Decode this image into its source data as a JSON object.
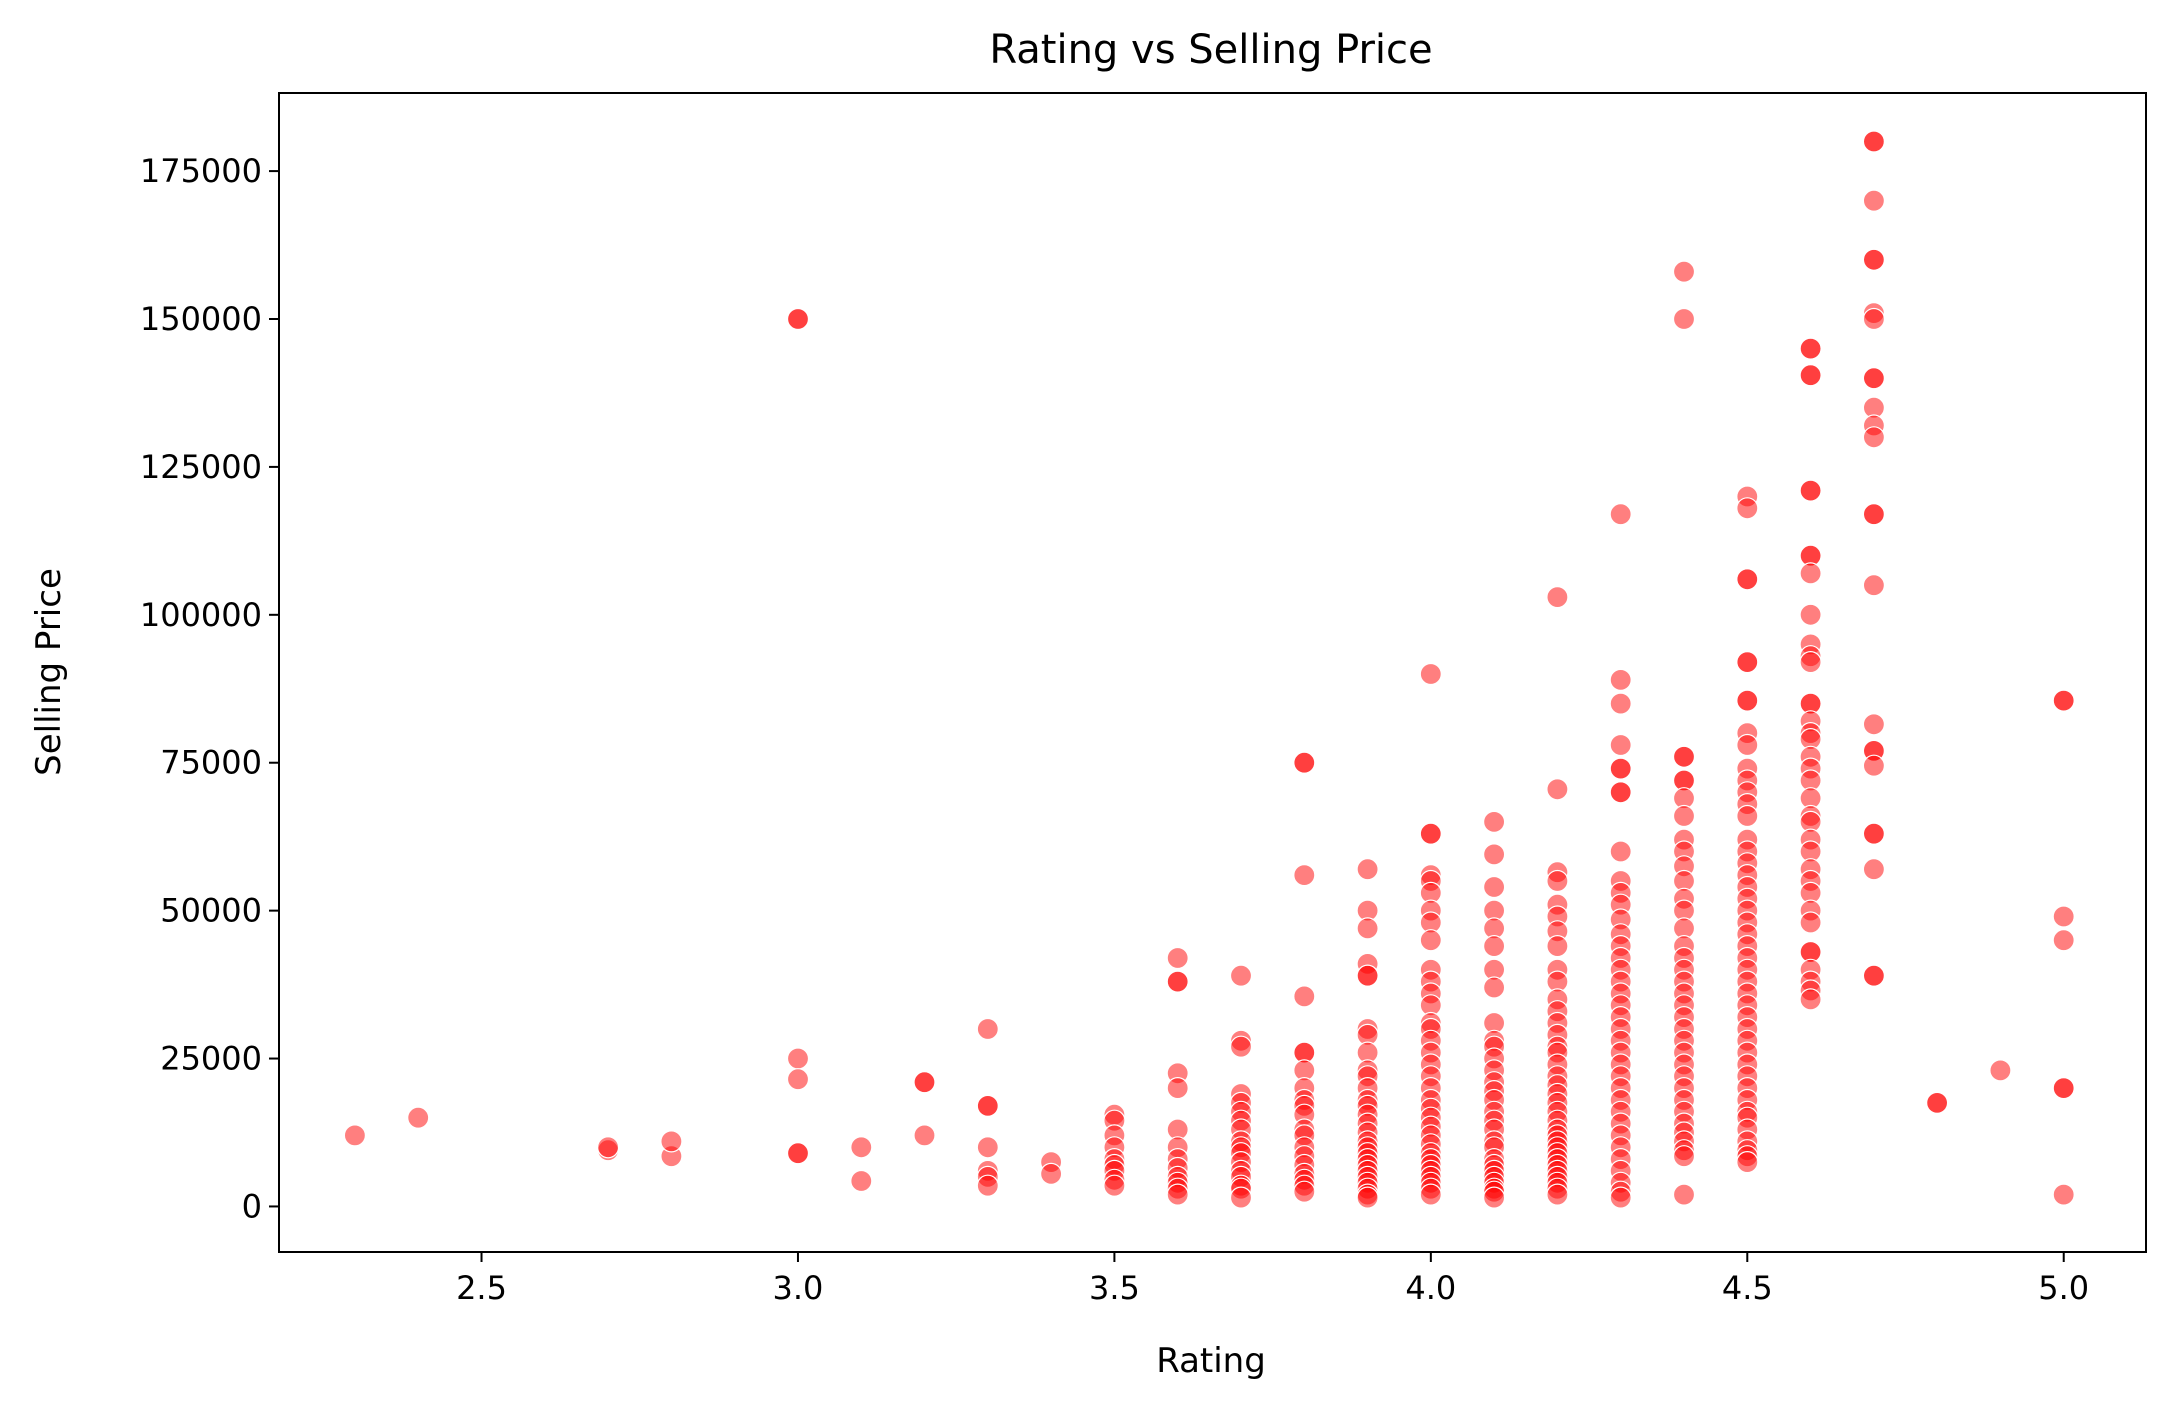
{
  "chart_data": {
    "type": "scatter",
    "title": "Rating vs Selling Price",
    "xlabel": "Rating",
    "ylabel": "Selling Price",
    "xlim": [
      2.18,
      5.13
    ],
    "ylim": [
      -7700,
      188200
    ],
    "x_ticks": [
      2.5,
      3.0,
      3.5,
      4.0,
      4.5,
      5.0
    ],
    "x_tick_labels": [
      "2.5",
      "3.0",
      "3.5",
      "4.0",
      "4.5",
      "5.0"
    ],
    "y_ticks": [
      0,
      25000,
      50000,
      75000,
      100000,
      125000,
      150000,
      175000
    ],
    "y_tick_labels": [
      "0",
      "25000",
      "50000",
      "75000",
      "100000",
      "125000",
      "150000",
      "175000"
    ],
    "grid": false,
    "marker_color": "#ff0000",
    "marker_alpha": 0.5,
    "points": [
      [
        2.3,
        12000
      ],
      [
        2.4,
        15000
      ],
      [
        2.7,
        9500
      ],
      [
        2.7,
        10000
      ],
      [
        2.8,
        8500
      ],
      [
        2.8,
        11000
      ],
      [
        3.0,
        150000
      ],
      [
        3.0,
        150000
      ],
      [
        3.0,
        25000
      ],
      [
        3.0,
        21500
      ],
      [
        3.0,
        9000
      ],
      [
        3.0,
        9000
      ],
      [
        3.1,
        10000
      ],
      [
        3.1,
        4300
      ],
      [
        3.2,
        21000
      ],
      [
        3.2,
        21000
      ],
      [
        3.2,
        12000
      ],
      [
        3.3,
        30000
      ],
      [
        3.3,
        17000
      ],
      [
        3.3,
        17000
      ],
      [
        3.3,
        10000
      ],
      [
        3.3,
        6000
      ],
      [
        3.3,
        5000
      ],
      [
        3.3,
        3500
      ],
      [
        3.4,
        7500
      ],
      [
        3.4,
        5500
      ],
      [
        3.5,
        15500
      ],
      [
        3.5,
        14500
      ],
      [
        3.5,
        12000
      ],
      [
        3.5,
        10000
      ],
      [
        3.5,
        8000
      ],
      [
        3.5,
        7000
      ],
      [
        3.5,
        6000
      ],
      [
        3.5,
        4500
      ],
      [
        3.5,
        3500
      ],
      [
        3.6,
        42000
      ],
      [
        3.6,
        38000
      ],
      [
        3.6,
        38000
      ],
      [
        3.6,
        22500
      ],
      [
        3.6,
        20000
      ],
      [
        3.6,
        13000
      ],
      [
        3.6,
        10000
      ],
      [
        3.6,
        8000
      ],
      [
        3.6,
        6500
      ],
      [
        3.6,
        5000
      ],
      [
        3.6,
        4000
      ],
      [
        3.6,
        3000
      ],
      [
        3.6,
        2000
      ],
      [
        3.7,
        39000
      ],
      [
        3.7,
        28000
      ],
      [
        3.7,
        27000
      ],
      [
        3.7,
        19000
      ],
      [
        3.7,
        17500
      ],
      [
        3.7,
        16000
      ],
      [
        3.7,
        14500
      ],
      [
        3.7,
        13000
      ],
      [
        3.7,
        11000
      ],
      [
        3.7,
        10000
      ],
      [
        3.7,
        9000
      ],
      [
        3.7,
        7500
      ],
      [
        3.7,
        6000
      ],
      [
        3.7,
        5000
      ],
      [
        3.7,
        3500
      ],
      [
        3.7,
        3000
      ],
      [
        3.7,
        1500
      ],
      [
        3.8,
        75000
      ],
      [
        3.8,
        75000
      ],
      [
        3.8,
        56000
      ],
      [
        3.8,
        35500
      ],
      [
        3.8,
        26000
      ],
      [
        3.8,
        26000
      ],
      [
        3.8,
        23000
      ],
      [
        3.8,
        20000
      ],
      [
        3.8,
        18000
      ],
      [
        3.8,
        17000
      ],
      [
        3.8,
        15500
      ],
      [
        3.8,
        13000
      ],
      [
        3.8,
        12000
      ],
      [
        3.8,
        10000
      ],
      [
        3.8,
        8500
      ],
      [
        3.8,
        7000
      ],
      [
        3.8,
        5500
      ],
      [
        3.8,
        4500
      ],
      [
        3.8,
        3500
      ],
      [
        3.8,
        2500
      ],
      [
        3.9,
        57000
      ],
      [
        3.9,
        50000
      ],
      [
        3.9,
        47000
      ],
      [
        3.9,
        41000
      ],
      [
        3.9,
        39000
      ],
      [
        3.9,
        39000
      ],
      [
        3.9,
        30000
      ],
      [
        3.9,
        29000
      ],
      [
        3.9,
        26000
      ],
      [
        3.9,
        23000
      ],
      [
        3.9,
        22000
      ],
      [
        3.9,
        20000
      ],
      [
        3.9,
        18000
      ],
      [
        3.9,
        17000
      ],
      [
        3.9,
        15500
      ],
      [
        3.9,
        14000
      ],
      [
        3.9,
        12500
      ],
      [
        3.9,
        11000
      ],
      [
        3.9,
        10000
      ],
      [
        3.9,
        9000
      ],
      [
        3.9,
        8000
      ],
      [
        3.9,
        7000
      ],
      [
        3.9,
        6000
      ],
      [
        3.9,
        5000
      ],
      [
        3.9,
        4000
      ],
      [
        3.9,
        3000
      ],
      [
        3.9,
        2000
      ],
      [
        3.9,
        1500
      ],
      [
        4.0,
        90000
      ],
      [
        4.0,
        63000
      ],
      [
        4.0,
        63000
      ],
      [
        4.0,
        56000
      ],
      [
        4.0,
        55000
      ],
      [
        4.0,
        53000
      ],
      [
        4.0,
        50000
      ],
      [
        4.0,
        48000
      ],
      [
        4.0,
        45000
      ],
      [
        4.0,
        40000
      ],
      [
        4.0,
        38000
      ],
      [
        4.0,
        36000
      ],
      [
        4.0,
        34000
      ],
      [
        4.0,
        31000
      ],
      [
        4.0,
        30000
      ],
      [
        4.0,
        28000
      ],
      [
        4.0,
        26000
      ],
      [
        4.0,
        24000
      ],
      [
        4.0,
        22000
      ],
      [
        4.0,
        20000
      ],
      [
        4.0,
        18000
      ],
      [
        4.0,
        16500
      ],
      [
        4.0,
        15000
      ],
      [
        4.0,
        13500
      ],
      [
        4.0,
        12000
      ],
      [
        4.0,
        10500
      ],
      [
        4.0,
        9000
      ],
      [
        4.0,
        8000
      ],
      [
        4.0,
        7000
      ],
      [
        4.0,
        6000
      ],
      [
        4.0,
        5000
      ],
      [
        4.0,
        4000
      ],
      [
        4.0,
        3000
      ],
      [
        4.0,
        2000
      ],
      [
        4.1,
        65000
      ],
      [
        4.1,
        59500
      ],
      [
        4.1,
        54000
      ],
      [
        4.1,
        50000
      ],
      [
        4.1,
        47000
      ],
      [
        4.1,
        44000
      ],
      [
        4.1,
        40000
      ],
      [
        4.1,
        37000
      ],
      [
        4.1,
        31000
      ],
      [
        4.1,
        28000
      ],
      [
        4.1,
        27000
      ],
      [
        4.1,
        25000
      ],
      [
        4.1,
        23000
      ],
      [
        4.1,
        21000
      ],
      [
        4.1,
        19500
      ],
      [
        4.1,
        18000
      ],
      [
        4.1,
        16000
      ],
      [
        4.1,
        14500
      ],
      [
        4.1,
        13000
      ],
      [
        4.1,
        11000
      ],
      [
        4.1,
        10000
      ],
      [
        4.1,
        8000
      ],
      [
        4.1,
        7000
      ],
      [
        4.1,
        6000
      ],
      [
        4.1,
        5000
      ],
      [
        4.1,
        4000
      ],
      [
        4.1,
        3000
      ],
      [
        4.1,
        2500
      ],
      [
        4.1,
        1500
      ],
      [
        4.2,
        103000
      ],
      [
        4.2,
        70500
      ],
      [
        4.2,
        56500
      ],
      [
        4.2,
        55000
      ],
      [
        4.2,
        51000
      ],
      [
        4.2,
        49000
      ],
      [
        4.2,
        46500
      ],
      [
        4.2,
        44000
      ],
      [
        4.2,
        40000
      ],
      [
        4.2,
        38000
      ],
      [
        4.2,
        35000
      ],
      [
        4.2,
        33000
      ],
      [
        4.2,
        31000
      ],
      [
        4.2,
        29000
      ],
      [
        4.2,
        27000
      ],
      [
        4.2,
        26000
      ],
      [
        4.2,
        24000
      ],
      [
        4.2,
        22000
      ],
      [
        4.2,
        20500
      ],
      [
        4.2,
        19000
      ],
      [
        4.2,
        17500
      ],
      [
        4.2,
        16000
      ],
      [
        4.2,
        14500
      ],
      [
        4.2,
        13000
      ],
      [
        4.2,
        12000
      ],
      [
        4.2,
        11000
      ],
      [
        4.2,
        10000
      ],
      [
        4.2,
        9000
      ],
      [
        4.2,
        8000
      ],
      [
        4.2,
        7000
      ],
      [
        4.2,
        6000
      ],
      [
        4.2,
        5000
      ],
      [
        4.2,
        4000
      ],
      [
        4.2,
        3000
      ],
      [
        4.2,
        2000
      ],
      [
        4.3,
        117000
      ],
      [
        4.3,
        89000
      ],
      [
        4.3,
        85000
      ],
      [
        4.3,
        78000
      ],
      [
        4.3,
        74000
      ],
      [
        4.3,
        74000
      ],
      [
        4.3,
        70000
      ],
      [
        4.3,
        70000
      ],
      [
        4.3,
        60000
      ],
      [
        4.3,
        55000
      ],
      [
        4.3,
        53000
      ],
      [
        4.3,
        51000
      ],
      [
        4.3,
        48500
      ],
      [
        4.3,
        46000
      ],
      [
        4.3,
        44000
      ],
      [
        4.3,
        42000
      ],
      [
        4.3,
        40000
      ],
      [
        4.3,
        38000
      ],
      [
        4.3,
        36000
      ],
      [
        4.3,
        34000
      ],
      [
        4.3,
        32000
      ],
      [
        4.3,
        30000
      ],
      [
        4.3,
        28000
      ],
      [
        4.3,
        26000
      ],
      [
        4.3,
        24000
      ],
      [
        4.3,
        22000
      ],
      [
        4.3,
        20000
      ],
      [
        4.3,
        18000
      ],
      [
        4.3,
        16000
      ],
      [
        4.3,
        14000
      ],
      [
        4.3,
        12000
      ],
      [
        4.3,
        10000
      ],
      [
        4.3,
        8000
      ],
      [
        4.3,
        6000
      ],
      [
        4.3,
        4000
      ],
      [
        4.3,
        2500
      ],
      [
        4.3,
        1500
      ],
      [
        4.4,
        158000
      ],
      [
        4.4,
        150000
      ],
      [
        4.4,
        76000
      ],
      [
        4.4,
        76000
      ],
      [
        4.4,
        72000
      ],
      [
        4.4,
        72000
      ],
      [
        4.4,
        69000
      ],
      [
        4.4,
        66000
      ],
      [
        4.4,
        62000
      ],
      [
        4.4,
        60000
      ],
      [
        4.4,
        57500
      ],
      [
        4.4,
        55000
      ],
      [
        4.4,
        52000
      ],
      [
        4.4,
        50000
      ],
      [
        4.4,
        47000
      ],
      [
        4.4,
        44000
      ],
      [
        4.4,
        42000
      ],
      [
        4.4,
        40000
      ],
      [
        4.4,
        38000
      ],
      [
        4.4,
        36000
      ],
      [
        4.4,
        34000
      ],
      [
        4.4,
        32000
      ],
      [
        4.4,
        30000
      ],
      [
        4.4,
        28000
      ],
      [
        4.4,
        26000
      ],
      [
        4.4,
        24000
      ],
      [
        4.4,
        22000
      ],
      [
        4.4,
        20000
      ],
      [
        4.4,
        18000
      ],
      [
        4.4,
        16000
      ],
      [
        4.4,
        14000
      ],
      [
        4.4,
        12500
      ],
      [
        4.4,
        11000
      ],
      [
        4.4,
        9500
      ],
      [
        4.4,
        8500
      ],
      [
        4.4,
        2000
      ],
      [
        4.5,
        120000
      ],
      [
        4.5,
        118000
      ],
      [
        4.5,
        106000
      ],
      [
        4.5,
        106000
      ],
      [
        4.5,
        92000
      ],
      [
        4.5,
        92000
      ],
      [
        4.5,
        85500
      ],
      [
        4.5,
        85500
      ],
      [
        4.5,
        80000
      ],
      [
        4.5,
        78000
      ],
      [
        4.5,
        74000
      ],
      [
        4.5,
        72000
      ],
      [
        4.5,
        70000
      ],
      [
        4.5,
        68000
      ],
      [
        4.5,
        66000
      ],
      [
        4.5,
        62000
      ],
      [
        4.5,
        60000
      ],
      [
        4.5,
        58000
      ],
      [
        4.5,
        56000
      ],
      [
        4.5,
        54000
      ],
      [
        4.5,
        52000
      ],
      [
        4.5,
        50000
      ],
      [
        4.5,
        48000
      ],
      [
        4.5,
        46000
      ],
      [
        4.5,
        44000
      ],
      [
        4.5,
        42000
      ],
      [
        4.5,
        40000
      ],
      [
        4.5,
        38000
      ],
      [
        4.5,
        36000
      ],
      [
        4.5,
        34000
      ],
      [
        4.5,
        32000
      ],
      [
        4.5,
        30000
      ],
      [
        4.5,
        28000
      ],
      [
        4.5,
        26000
      ],
      [
        4.5,
        24000
      ],
      [
        4.5,
        22000
      ],
      [
        4.5,
        20000
      ],
      [
        4.5,
        18000
      ],
      [
        4.5,
        16000
      ],
      [
        4.5,
        15000
      ],
      [
        4.5,
        13000
      ],
      [
        4.5,
        11000
      ],
      [
        4.5,
        9500
      ],
      [
        4.5,
        8500
      ],
      [
        4.5,
        7500
      ],
      [
        4.6,
        145000
      ],
      [
        4.6,
        145000
      ],
      [
        4.6,
        140500
      ],
      [
        4.6,
        140500
      ],
      [
        4.6,
        121000
      ],
      [
        4.6,
        121000
      ],
      [
        4.6,
        110000
      ],
      [
        4.6,
        110000
      ],
      [
        4.6,
        107000
      ],
      [
        4.6,
        100000
      ],
      [
        4.6,
        95000
      ],
      [
        4.6,
        93000
      ],
      [
        4.6,
        92000
      ],
      [
        4.6,
        85000
      ],
      [
        4.6,
        85000
      ],
      [
        4.6,
        82000
      ],
      [
        4.6,
        80000
      ],
      [
        4.6,
        79000
      ],
      [
        4.6,
        76000
      ],
      [
        4.6,
        74000
      ],
      [
        4.6,
        72000
      ],
      [
        4.6,
        69000
      ],
      [
        4.6,
        66000
      ],
      [
        4.6,
        65000
      ],
      [
        4.6,
        62000
      ],
      [
        4.6,
        60000
      ],
      [
        4.6,
        57000
      ],
      [
        4.6,
        55000
      ],
      [
        4.6,
        53000
      ],
      [
        4.6,
        50000
      ],
      [
        4.6,
        48000
      ],
      [
        4.6,
        43000
      ],
      [
        4.6,
        43000
      ],
      [
        4.6,
        40000
      ],
      [
        4.6,
        38000
      ],
      [
        4.6,
        36500
      ],
      [
        4.6,
        35000
      ],
      [
        4.7,
        180000
      ],
      [
        4.7,
        180000
      ],
      [
        4.7,
        170000
      ],
      [
        4.7,
        160000
      ],
      [
        4.7,
        160000
      ],
      [
        4.7,
        151000
      ],
      [
        4.7,
        150000
      ],
      [
        4.7,
        140000
      ],
      [
        4.7,
        140000
      ],
      [
        4.7,
        135000
      ],
      [
        4.7,
        132000
      ],
      [
        4.7,
        130000
      ],
      [
        4.7,
        117000
      ],
      [
        4.7,
        117000
      ],
      [
        4.7,
        105000
      ],
      [
        4.7,
        81500
      ],
      [
        4.7,
        77000
      ],
      [
        4.7,
        77000
      ],
      [
        4.7,
        74500
      ],
      [
        4.7,
        63000
      ],
      [
        4.7,
        63000
      ],
      [
        4.7,
        57000
      ],
      [
        4.7,
        39000
      ],
      [
        4.7,
        39000
      ],
      [
        4.8,
        17500
      ],
      [
        4.8,
        17500
      ],
      [
        4.9,
        23000
      ],
      [
        5.0,
        85500
      ],
      [
        5.0,
        85500
      ],
      [
        5.0,
        49000
      ],
      [
        5.0,
        45000
      ],
      [
        5.0,
        20000
      ],
      [
        5.0,
        20000
      ],
      [
        5.0,
        2000
      ]
    ]
  }
}
